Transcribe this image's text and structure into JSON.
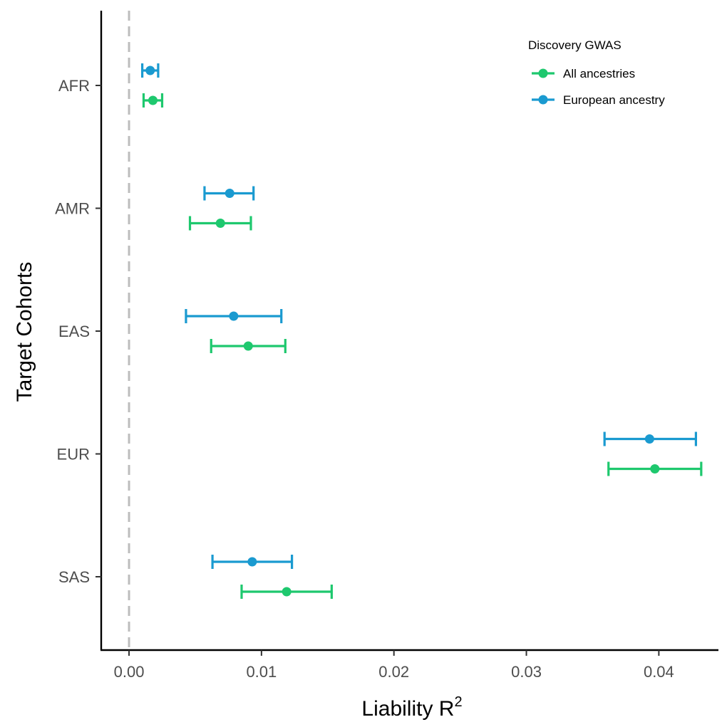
{
  "chart_data": {
    "type": "scatter",
    "subtype": "dot-and-whisker",
    "orientation": "horizontal",
    "xlabel": "Liability R",
    "xlabel_superscript": "2",
    "ylabel": "Target Cohorts",
    "xlim": [
      -0.0021,
      0.0445
    ],
    "x_ticks": [
      0.0,
      0.01,
      0.02,
      0.03,
      0.04
    ],
    "x_tick_labels": [
      "0.00",
      "0.01",
      "0.02",
      "0.03",
      "0.04"
    ],
    "categories": [
      "AFR",
      "AMR",
      "EAS",
      "EUR",
      "SAS"
    ],
    "reference_line": {
      "x": 0,
      "style": "dashed",
      "color": "#bdbdbd"
    },
    "grid": false,
    "legend": {
      "title": "Discovery GWAS",
      "placement": "top-right, inside"
    },
    "series": [
      {
        "name": "All ancestries",
        "color": "#1ec86e",
        "points": [
          {
            "category": "AFR",
            "x": 0.0018,
            "lo": 0.0011,
            "hi": 0.0025
          },
          {
            "category": "AMR",
            "x": 0.0069,
            "lo": 0.0046,
            "hi": 0.0092
          },
          {
            "category": "EAS",
            "x": 0.009,
            "lo": 0.0062,
            "hi": 0.0118
          },
          {
            "category": "EUR",
            "x": 0.0397,
            "lo": 0.0362,
            "hi": 0.0432
          },
          {
            "category": "SAS",
            "x": 0.0119,
            "lo": 0.0085,
            "hi": 0.0153
          }
        ]
      },
      {
        "name": "European ancestry",
        "color": "#1a9ad0",
        "points": [
          {
            "category": "AFR",
            "x": 0.0016,
            "lo": 0.001,
            "hi": 0.0022
          },
          {
            "category": "AMR",
            "x": 0.0076,
            "lo": 0.0057,
            "hi": 0.0094
          },
          {
            "category": "EAS",
            "x": 0.0079,
            "lo": 0.0043,
            "hi": 0.0115
          },
          {
            "category": "EUR",
            "x": 0.0393,
            "lo": 0.0359,
            "hi": 0.0428
          },
          {
            "category": "SAS",
            "x": 0.0093,
            "lo": 0.0063,
            "hi": 0.0123
          }
        ]
      }
    ]
  }
}
